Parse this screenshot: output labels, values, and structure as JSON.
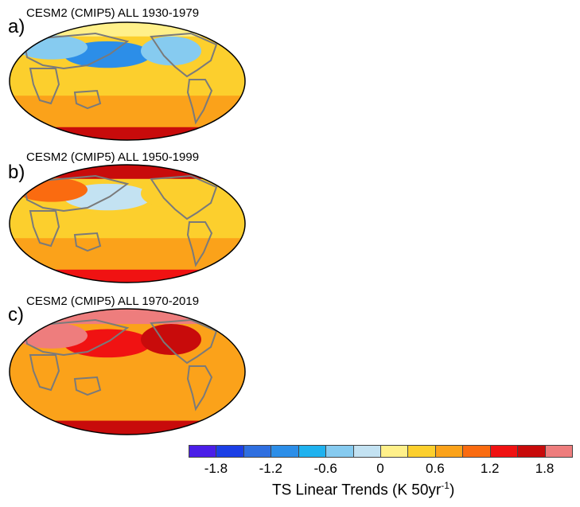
{
  "chart_data": {
    "type": "map",
    "panels": [
      {
        "label": "a)",
        "title": "CESM2 (CMIP5) ALL 1930-1979",
        "regions": [
          {
            "name": "arctic",
            "value": 0.2
          },
          {
            "name": "north-pacific",
            "value": -1.2
          },
          {
            "name": "north-america",
            "value": -0.6
          },
          {
            "name": "eurasia-north",
            "value": -0.6
          },
          {
            "name": "tropics",
            "value": 0.3
          },
          {
            "name": "southern-ocean",
            "value": 0.8
          },
          {
            "name": "antarctic-coast",
            "value": 1.6
          }
        ]
      },
      {
        "label": "b)",
        "title": "CESM2 (CMIP5) ALL 1950-1999",
        "regions": [
          {
            "name": "arctic",
            "value": 1.6
          },
          {
            "name": "north-pacific",
            "value": -0.2
          },
          {
            "name": "north-america",
            "value": 0.4
          },
          {
            "name": "eurasia-north",
            "value": 1.0
          },
          {
            "name": "tropics",
            "value": 0.5
          },
          {
            "name": "southern-ocean",
            "value": 0.7
          },
          {
            "name": "antarctic-coast",
            "value": 1.4
          }
        ]
      },
      {
        "label": "c)",
        "title": "CESM2 (CMIP5) ALL 1970-2019",
        "regions": [
          {
            "name": "arctic",
            "value": 2.0
          },
          {
            "name": "north-pacific",
            "value": 1.2
          },
          {
            "name": "north-america",
            "value": 1.6
          },
          {
            "name": "eurasia-north",
            "value": 1.8
          },
          {
            "name": "tropics",
            "value": 0.8
          },
          {
            "name": "southern-ocean",
            "value": 0.7
          },
          {
            "name": "antarctic-coast",
            "value": 1.6
          }
        ]
      }
    ],
    "colorbar": {
      "levels": [
        -2.1,
        -1.8,
        -1.5,
        -1.2,
        -0.9,
        -0.6,
        -0.3,
        0,
        0.3,
        0.6,
        0.9,
        1.2,
        1.5,
        1.8,
        2.1
      ],
      "colors": [
        "#4a1ee8",
        "#1b3fe6",
        "#2f6fe0",
        "#2c8ee8",
        "#1fb2ef",
        "#86cbf0",
        "#c3e2f2",
        "#fff08a",
        "#fccf2d",
        "#fba21a",
        "#fa6b10",
        "#f01212",
        "#c80b0b",
        "#ee7d7d"
      ],
      "tick_labels": [
        "-1.8",
        "-1.2",
        "-0.6",
        "0",
        "0.6",
        "1.2",
        "1.8"
      ],
      "label_main": "TS Linear Trends (K 50yr",
      "label_sup": "-1",
      "label_tail": ")"
    }
  }
}
